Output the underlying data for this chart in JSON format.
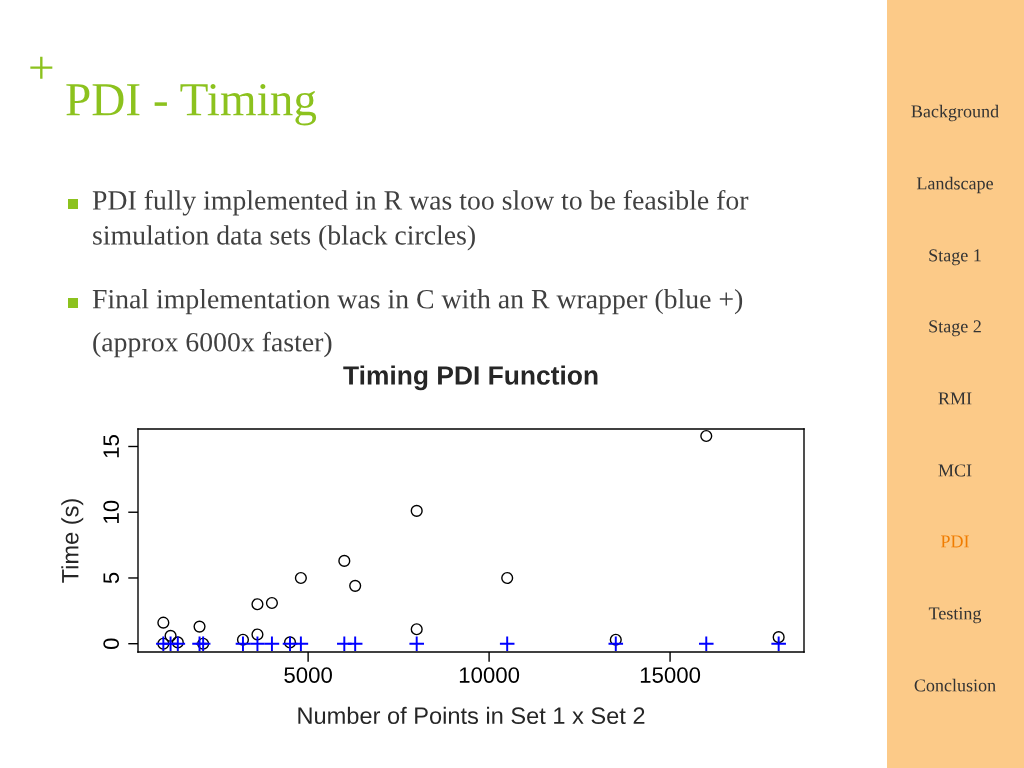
{
  "chart_data": {
    "type": "scatter",
    "title": "Timing PDI Function",
    "xlabel": "Number of Points in Set 1 x Set 2",
    "ylabel": "Time (s)",
    "series": [
      {
        "marker": "circle",
        "color": "#000000",
        "x": [
          1000,
          1200,
          1400,
          1000,
          2000,
          2100,
          3200,
          3600,
          3600,
          4000,
          4500,
          4800,
          6000,
          6300,
          8000,
          8000,
          10500,
          13500,
          16000,
          18000
        ],
        "values": [
          1.6,
          0.6,
          0.1,
          0,
          1.3,
          0,
          0.3,
          3.0,
          0.7,
          3.1,
          0.1,
          5.0,
          6.3,
          4.4,
          10.1,
          1.1,
          5.0,
          0.3,
          15.8,
          0.5
        ]
      },
      {
        "marker": "cross",
        "color": "#0000ff",
        "x": [
          1000,
          1200,
          1400,
          2000,
          2100,
          3200,
          3600,
          4000,
          4500,
          4800,
          6000,
          6300,
          8000,
          10500,
          13500,
          16000,
          18000
        ],
        "values": [
          0,
          0,
          0,
          0,
          0,
          0,
          0,
          0,
          0,
          0,
          0,
          0,
          0,
          0,
          0,
          0,
          0
        ]
      }
    ],
    "xlim": [
      300,
      18700
    ],
    "ylim": [
      -0.63,
      16.33
    ],
    "xticks": [
      5000,
      10000,
      15000
    ],
    "yticks": [
      0,
      5,
      10,
      15
    ],
    "grid": false,
    "legend": false,
    "annotations": [
      "+",
      "PDI - Timing",
      "PDI fully implemented in R was too slow to be feasible for\nsimulation data sets (black circles)",
      "Final implementation was in C with an R wrapper (blue +)\n(approx 6000x faster)",
      "Background",
      "Landscape",
      "Stage 1",
      "Stage 2",
      "RMI",
      "MCI",
      "PDI",
      "Testing",
      "Conclusion"
    ]
  }
}
